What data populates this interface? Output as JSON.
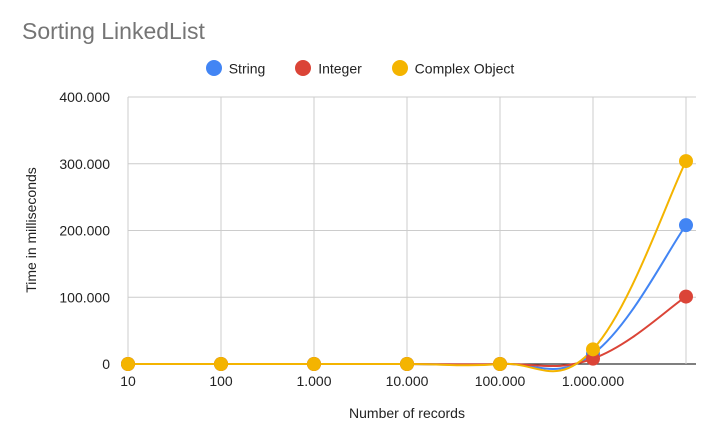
{
  "chart_data": {
    "type": "line",
    "title": "Sorting LinkedList",
    "xlabel": "Number of records",
    "ylabel": "Time in milliseconds",
    "categories": [
      "10",
      "100",
      "1.000",
      "10.000",
      "100.000",
      "1.000.000",
      ""
    ],
    "y_ticks": [
      "0",
      "100.000",
      "200.000",
      "300.000",
      "400.000"
    ],
    "ylim": [
      0,
      400000
    ],
    "grid": true,
    "legend_position": "top",
    "series": [
      {
        "name": "String",
        "color": "#4285f4",
        "values": [
          0,
          0,
          0,
          0,
          0,
          15000,
          208000
        ]
      },
      {
        "name": "Integer",
        "color": "#db4437",
        "values": [
          0,
          0,
          0,
          0,
          0,
          8000,
          101000
        ]
      },
      {
        "name": "Complex Object",
        "color": "#f4b400",
        "values": [
          0,
          0,
          0,
          0,
          0,
          22000,
          304000
        ]
      }
    ]
  }
}
